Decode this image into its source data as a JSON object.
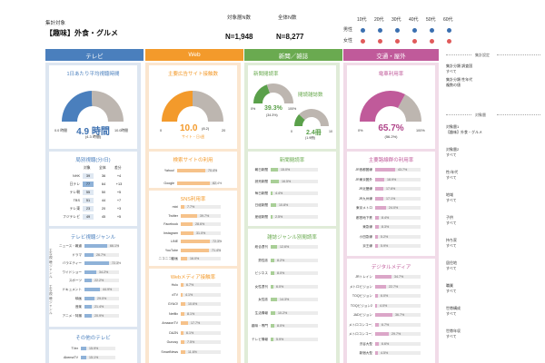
{
  "header": {
    "target_label": "集計対象",
    "target_value": "【趣味】外食・グルメ",
    "target_n_label": "対象層N数",
    "target_n_value": "N=1,948",
    "total_n_label": "全体N数",
    "total_n_value": "N=8,277",
    "ages": [
      "10代",
      "20代",
      "30代",
      "40代",
      "50代",
      "60代"
    ],
    "gender_male": "男性",
    "gender_female": "女性",
    "dot_colors": {
      "male": "#3b6fb0",
      "female": "#e05a5a"
    }
  },
  "tabs": [
    {
      "label": "テレビ",
      "color": "#4a7fbd"
    },
    {
      "label": "Web",
      "color": "#f39a2b"
    },
    {
      "label": "新聞／雑誌",
      "color": "#6aaa50"
    },
    {
      "label": "交通・屋外",
      "color": "#c05a9a"
    }
  ],
  "tv": {
    "gauge_title": "1日あたり平均視聴時間",
    "gauge_value": "4.9",
    "gauge_unit": "時間",
    "gauge_sub": "(4.3 時間)",
    "gauge_min": "0.0 時間",
    "gauge_max": "10.0時間",
    "stations_title": "局別視聴(分/日)",
    "stations_headers": [
      "対象",
      "全体",
      "差分"
    ],
    "stations": [
      {
        "name": "NHK",
        "a": "39",
        "b": "36",
        "d": "+4"
      },
      {
        "name": "日テレ",
        "a": "77",
        "b": "64",
        "d": "+13"
      },
      {
        "name": "テレ朝",
        "a": "55",
        "b": "50",
        "d": "+5"
      },
      {
        "name": "TBS",
        "a": "51",
        "b": "44",
        "d": "+7"
      },
      {
        "name": "テレ東",
        "a": "23",
        "b": "20",
        "d": "+3"
      },
      {
        "name": "フジテレビ",
        "a": "49",
        "b": "45",
        "d": "+5"
      }
    ],
    "genre_title": "テレビ視聴ジャンル",
    "genre_group1": "主な視聴ジャンル",
    "genre_group2": "主な視聴ジャンル",
    "genres": [
      {
        "label": "ニュース・報道",
        "v": "66.1%",
        "f": 0.66
      },
      {
        "label": "ドラマ",
        "v": "26.7%",
        "f": 0.27
      },
      {
        "label": "バラエティー",
        "v": "72.3%",
        "f": 0.72
      },
      {
        "label": "ワイドショー",
        "v": "34.2%",
        "f": 0.34
      },
      {
        "label": "スポーツ",
        "v": "22.2%",
        "f": 0.22
      },
      {
        "label": "ドキュメント",
        "v": "44.9%",
        "f": 0.45
      },
      {
        "label": "映画",
        "v": "29.0%",
        "f": 0.29
      },
      {
        "label": "音楽",
        "v": "21.4%",
        "f": 0.21
      },
      {
        "label": "アニメ・特撮",
        "v": "20.9%",
        "f": 0.21
      }
    ],
    "other_title": "その他のテレビ",
    "other": [
      {
        "label": "TVer",
        "v": "15.9%",
        "f": 0.16
      },
      {
        "label": "AbemaTV",
        "v": "15.1%",
        "f": 0.15
      }
    ]
  },
  "web": {
    "gauge_title": "主要広告サイト接触数",
    "gauge_value": "10.0",
    "gauge_sub": "(8.2)",
    "gauge_unit": "サイト・日/週",
    "gauge_min": "0",
    "gauge_max": "20",
    "search_title": "検索サイトの利用",
    "search": [
      {
        "label": "Yahoo!",
        "v": "70.4%",
        "f": 0.7
      },
      {
        "label": "Google",
        "v": "82.4%",
        "f": 0.82
      }
    ],
    "sns_title": "SNS利用率",
    "sns": [
      {
        "label": "mixi",
        "v": "7.7%",
        "f": 0.08
      },
      {
        "label": "Twitter",
        "v": "39.7%",
        "f": 0.4
      },
      {
        "label": "Facebook",
        "v": "28.6%",
        "f": 0.29
      },
      {
        "label": "Instagram",
        "v": "31.0%",
        "f": 0.31
      },
      {
        "label": "LINE",
        "v": "72.3%",
        "f": 0.72
      },
      {
        "label": "YouTube",
        "v": "71.4%",
        "f": 0.71
      },
      {
        "label": "ニコニコ動画",
        "v": "16.0%",
        "f": 0.16
      }
    ],
    "media_title": "Webメディア接触率",
    "media": [
      {
        "label": "Hulu",
        "v": "6.7%",
        "f": 0.07
      },
      {
        "label": "dTV",
        "v": "4.1%",
        "f": 0.04
      },
      {
        "label": "GYAO!",
        "v": "10.6%",
        "f": 0.11
      },
      {
        "label": "Netflix",
        "v": "8.1%",
        "f": 0.08
      },
      {
        "label": "AmazonTV",
        "v": "17.7%",
        "f": 0.18
      },
      {
        "label": "DAZN",
        "v": "6.1%",
        "f": 0.06
      },
      {
        "label": "Gunosy",
        "v": "7.5%",
        "f": 0.08
      },
      {
        "label": "SmartNews",
        "v": "11.6%",
        "f": 0.12
      }
    ]
  },
  "news": {
    "paper_title": "新聞閲読率",
    "paper_value": "39.3%",
    "paper_sub": "(34.3%)",
    "paper_min": "0%",
    "paper_max": "100%",
    "mag_title": "閲読雑誌数",
    "mag_value": "2.4",
    "mag_unit": "冊",
    "mag_sub": "(1.9冊)",
    "mag_min": "0",
    "mag_max": "10",
    "papers_title": "新聞閲読率",
    "papers": [
      {
        "label": "朝日新聞",
        "v": "15.0%",
        "f": 0.15
      },
      {
        "label": "読売新聞",
        "v": "16.5%",
        "f": 0.17
      },
      {
        "label": "毎日新聞",
        "v": "4.4%",
        "f": 0.04
      },
      {
        "label": "日経新聞",
        "v": "10.8%",
        "f": 0.11
      },
      {
        "label": "産経新聞",
        "v": "2.5%",
        "f": 0.03
      }
    ],
    "mags_title": "雑誌ジャンル別閲読率",
    "mags": [
      {
        "label": "総合週刊",
        "v": "12.6%",
        "f": 0.13
      },
      {
        "label": "男性誌",
        "v": "8.2%",
        "f": 0.08
      },
      {
        "label": "ビジネス",
        "v": "8.0%",
        "f": 0.08
      },
      {
        "label": "女性週刊",
        "v": "6.0%",
        "f": 0.06
      },
      {
        "label": "女性誌",
        "v": "14.3%",
        "f": 0.14
      },
      {
        "label": "生活情報",
        "v": "10.2%",
        "f": 0.1
      },
      {
        "label": "趣味・専門",
        "v": "8.0%",
        "f": 0.08
      },
      {
        "label": "テレビ情報",
        "v": "5.9%",
        "f": 0.06
      }
    ]
  },
  "traffic": {
    "gauge_title": "電車利用率",
    "gauge_value": "65.7%",
    "gauge_sub": "(56.2%)",
    "gauge_min": "0%",
    "gauge_max": "100%",
    "lines_title": "主要路線群の利用率",
    "lines": [
      {
        "label": "JR首都圏線",
        "v": "43.7%",
        "f": 0.44
      },
      {
        "label": "JR東京圏外",
        "v": "18.9%",
        "f": 0.19
      },
      {
        "label": "JR近畿線",
        "v": "17.6%",
        "f": 0.18
      },
      {
        "label": "JR九州線",
        "v": "17.1%",
        "f": 0.17
      },
      {
        "label": "東京メトロ",
        "v": "24.0%",
        "f": 0.24
      },
      {
        "label": "都営地下鉄",
        "v": "8.4%",
        "f": 0.08
      },
      {
        "label": "東急線",
        "v": "8.3%",
        "f": 0.08
      },
      {
        "label": "小田急線",
        "v": "5.2%",
        "f": 0.05
      },
      {
        "label": "京王線",
        "v": "5.9%",
        "f": 0.06
      }
    ],
    "digital_title": "デジタルメディア",
    "digital": [
      {
        "label": "JRトレイン",
        "v": "34.7%",
        "f": 0.35
      },
      {
        "label": "メトロビジョン",
        "v": "22.7%",
        "f": 0.23
      },
      {
        "label": "TOQビジョン",
        "v": "6.0%",
        "f": 0.06
      },
      {
        "label": "TOQビジョン2",
        "v": "4.0%",
        "f": 0.04
      },
      {
        "label": "JADビジョン",
        "v": "36.7%",
        "f": 0.37
      },
      {
        "label": "メトロコンコースビジョン",
        "v": "6.7%",
        "f": 0.07
      },
      {
        "label": "メトロコンコースビジョン2",
        "v": "29.7%",
        "f": 0.3
      },
      {
        "label": "渋谷大型",
        "v": "6.6%",
        "f": 0.07
      },
      {
        "label": "新宿大型",
        "v": "4.5%",
        "f": 0.05
      }
    ]
  },
  "sidebar": {
    "head1": "集計設定",
    "items1": [
      {
        "label": "集計分類 調査国",
        "value": "すべて"
      },
      {
        "label": "集計分類 性年代",
        "value": "複数の値"
      }
    ],
    "head2": "対象層",
    "items2": [
      {
        "label": "対象層1",
        "value": "【趣味】外食・グルメ"
      },
      {
        "label": "対象層2",
        "value": "すべて"
      },
      {
        "label": "性/年代",
        "value": "すべて"
      },
      {
        "label": "地域",
        "value": "すべて"
      },
      {
        "label": "子供",
        "value": "すべて"
      },
      {
        "label": "持ち家",
        "value": "すべて"
      },
      {
        "label": "居住地",
        "value": "すべて"
      },
      {
        "label": "職業",
        "value": "すべて"
      },
      {
        "label": "世帯構成",
        "value": "すべて"
      },
      {
        "label": "世帯年収",
        "value": "すべて"
      }
    ]
  }
}
